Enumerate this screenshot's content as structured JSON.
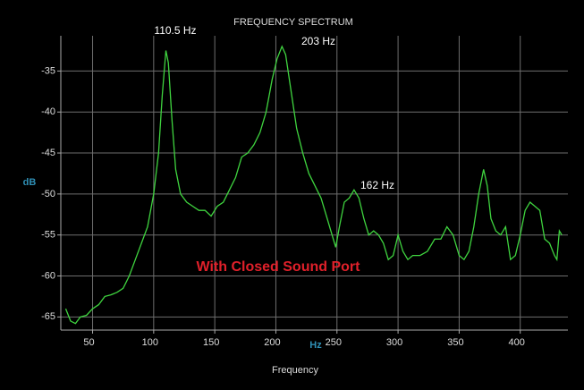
{
  "chart_data": {
    "type": "line",
    "title": "FREQUENCY SPECTRUM",
    "x_label": "Frequency",
    "x_unit": "Hz",
    "y_label": "dB",
    "annotations": [
      "110.5 Hz",
      "203 Hz",
      "162 Hz",
      "With Closed Sound Port"
    ],
    "x": [
      28,
      32,
      36,
      40,
      45,
      50,
      55,
      60,
      65,
      70,
      75,
      80,
      85,
      90,
      95,
      100,
      104,
      107,
      110,
      112,
      115,
      118,
      122,
      127,
      132,
      137,
      142,
      147,
      152,
      157,
      162,
      167,
      172,
      177,
      182,
      187,
      192,
      197,
      201,
      205,
      208,
      212,
      217,
      222,
      227,
      232,
      237,
      242,
      246,
      249,
      252,
      256,
      260,
      264,
      268,
      272,
      276,
      280,
      284,
      288,
      292,
      296,
      300,
      304,
      308,
      312,
      318,
      324,
      330,
      335,
      340,
      345,
      350,
      354,
      358,
      362,
      366,
      370,
      373,
      376,
      380,
      384,
      388,
      392,
      396,
      400,
      404,
      408,
      412,
      416,
      420,
      424,
      428,
      430,
      432,
      434
    ],
    "series": [
      {
        "name": "dB",
        "color": "#3fd43f",
        "values": [
          -64,
          -65.5,
          -65.8,
          -65,
          -64.8,
          -64,
          -63.5,
          -62.5,
          -62.3,
          -62,
          -61.5,
          -60,
          -58,
          -56,
          -54,
          -50,
          -45,
          -38,
          -32.5,
          -34,
          -41,
          -47,
          -50,
          -51,
          -51.5,
          -52,
          -52,
          -52.7,
          -51.5,
          -51,
          -49.5,
          -48,
          -45.5,
          -45,
          -44,
          -42.5,
          -40,
          -36,
          -33.5,
          -32,
          -33,
          -37,
          -42,
          -45,
          -47.5,
          -49,
          -50.5,
          -53,
          -55,
          -56.5,
          -54,
          -51,
          -50.5,
          -49.5,
          -50.5,
          -53,
          -55,
          -54.5,
          -55,
          -56,
          -58,
          -57.5,
          -55,
          -57,
          -58,
          -57.5,
          -57.5,
          -57,
          -55.5,
          -55.5,
          -54,
          -55,
          -57.5,
          -58,
          -57,
          -54,
          -50,
          -47,
          -49,
          -53,
          -54.5,
          -55,
          -54,
          -58,
          -57.5,
          -55,
          -52,
          -51,
          -51.5,
          -52,
          -55.5,
          -56,
          -57.5,
          -58,
          -54.5,
          -55
        ]
      }
    ],
    "xlim": [
      24,
      439
    ],
    "ylim": [
      -66.6,
      -30.7
    ],
    "xticks": [
      50,
      100,
      150,
      200,
      250,
      300,
      350,
      400
    ],
    "yticks": [
      -65,
      -60,
      -55,
      -50,
      -45,
      -40,
      -35
    ],
    "grid": true
  }
}
